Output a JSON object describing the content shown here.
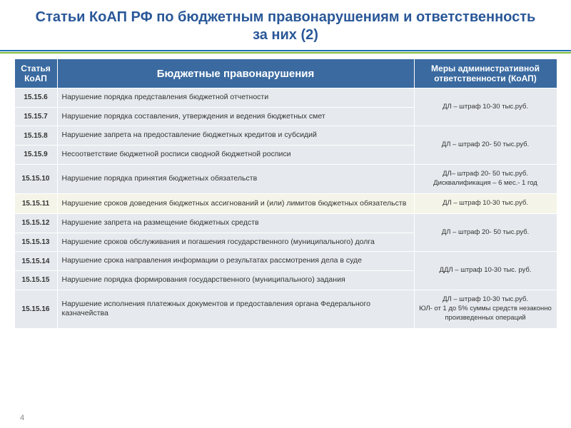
{
  "title": "Статьи КоАП РФ по бюджетным правонарушениям и ответственность за них (2)",
  "page_number": "4",
  "colors": {
    "header_bg": "#3a6aa0",
    "title_color": "#2a5898",
    "row_bg": "#e6e9ed",
    "highlight_bg": "#f4f5e8",
    "divider_blue": "#1e6fb0",
    "divider_green": "#7fba3a"
  },
  "columns": {
    "c1": "Статья КоАП",
    "c2": "Бюджетные правонарушения",
    "c3": "Меры административной ответственности (КоАП)"
  },
  "rows": [
    {
      "art": "15.15.6",
      "desc": "Нарушение порядка представления бюджетной отчетности"
    },
    {
      "art": "15.15.7",
      "desc": "Нарушение порядка составления, утверждения и ведения бюджетных смет"
    },
    {
      "art": "15.15.8",
      "desc": "Нарушение запрета на предоставление бюджетных кредитов и субсидий"
    },
    {
      "art": "15.15.9",
      "desc": "Несоответствие бюджетной росписи сводной бюджетной росписи"
    },
    {
      "art": "15.15.10",
      "desc": "Нарушение порядка принятия бюджетных обязательств"
    },
    {
      "art": "15.15.11",
      "desc": "Нарушение сроков  доведения бюджетных ассигнований и (или) лимитов бюджетных обязательств",
      "highlight": true
    },
    {
      "art": "15.15.12",
      "desc": "Нарушение запрета на размещение бюджетных средств"
    },
    {
      "art": "15.15.13",
      "desc": "Нарушение сроков обслуживания и погашения государственного (муниципального) долга"
    },
    {
      "art": "15.15.14",
      "desc": "Нарушение срока направления информации о результатах рассмотрения дела в суде"
    },
    {
      "art": "15.15.15",
      "desc": "Нарушение порядка формирования государственного (муниципального) задания"
    },
    {
      "art": "15.15.16",
      "desc": "Нарушение исполнения платежных документов   и предоставления органа Федерального казначейства"
    }
  ],
  "penalties": [
    {
      "rows": 2,
      "lines": [
        "ДЛ – штраф 10-30 тыс.руб."
      ]
    },
    {
      "rows": 2,
      "lines": [
        "ДЛ – штраф 20- 50 тыс.руб."
      ]
    },
    {
      "rows": 1,
      "lines": [
        "ДЛ– штраф 20- 50 тыс.руб.",
        "Дисквалификация – 6 мес.- 1 год"
      ]
    },
    {
      "rows": 1,
      "lines": [
        "ДЛ – штраф 10-30 тыс.руб."
      ]
    },
    {
      "rows": 2,
      "lines": [
        "ДЛ – штраф 20- 50 тыс.руб."
      ]
    },
    {
      "rows": 2,
      "lines": [
        "ДДЛ – штраф 10-30 тыс. руб."
      ]
    },
    {
      "rows": 1,
      "lines": [
        "ДЛ – штраф 10-30 тыс.руб.",
        "ЮЛ- от 1 до 5% суммы средств незаконно произведенных операций"
      ]
    }
  ]
}
